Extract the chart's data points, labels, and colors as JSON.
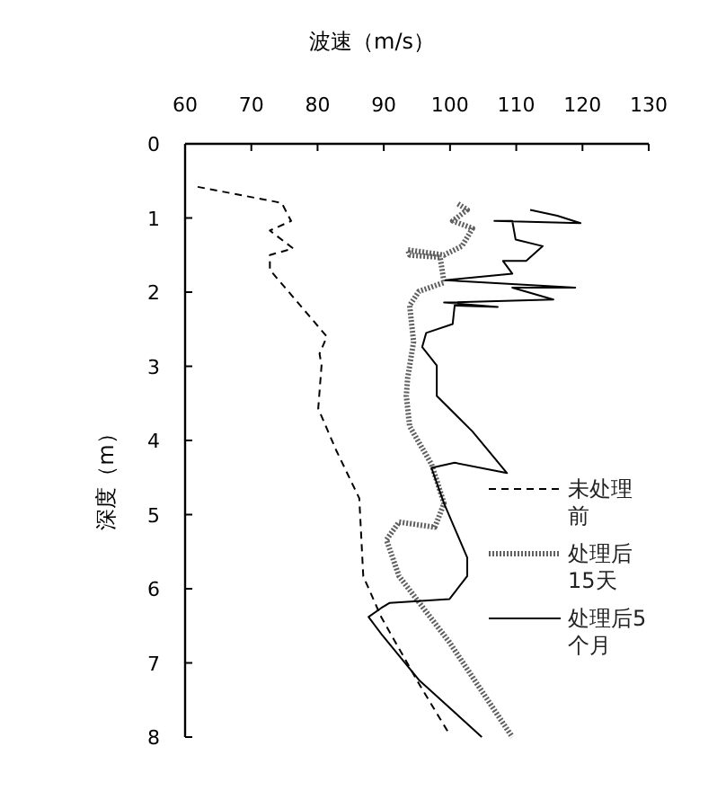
{
  "chart_data": {
    "type": "line",
    "xlabel": "波速（m/s）",
    "ylabel": "深度（m）",
    "xlim": [
      60,
      130
    ],
    "xticks": [
      60,
      70,
      80,
      90,
      100,
      110,
      120,
      130
    ],
    "ylim": [
      8,
      0
    ],
    "yticks": [
      0,
      1,
      2,
      3,
      4,
      5,
      6,
      7,
      8
    ],
    "legend": "right",
    "grid": false,
    "series": [
      {
        "name": "未处理前",
        "color": "#000000",
        "line_style": "dashed",
        "x": [
          61.9,
          73.6,
          74.6,
          76,
          72.8,
          76.3,
          72.8,
          72.8,
          77.4,
          81.4,
          80.3,
          80.6,
          80.1,
          82.8,
          86.3,
          86.9,
          89.6,
          95.3,
          99.9
        ],
        "values": [
          0.58,
          0.78,
          0.8,
          1.04,
          1.17,
          1.41,
          1.5,
          1.7,
          2.18,
          2.6,
          2.83,
          2.99,
          3.57,
          4.13,
          4.78,
          5.83,
          6.38,
          7.28,
          7.96
        ]
      },
      {
        "name": "处理后15天",
        "color": "#606060",
        "line_style": "dotted",
        "x": [
          101.2,
          102.6,
          100.4,
          103.4,
          101.8,
          99.1,
          93.6,
          93.9,
          98.5,
          99.1,
          95.3,
          93.9,
          94.5,
          93.6,
          93.4,
          93.9,
          97.2,
          99.1,
          97.7,
          92.3,
          90.4,
          92.3,
          99.9,
          109.4
        ],
        "values": [
          0.81,
          0.89,
          1.04,
          1.14,
          1.38,
          1.5,
          1.43,
          1.5,
          1.53,
          1.87,
          1.99,
          2.18,
          2.67,
          3.16,
          3.4,
          3.81,
          4.32,
          4.85,
          5.17,
          5.1,
          5.34,
          5.83,
          6.72,
          8.0
        ]
      },
      {
        "name": "处理后5个月",
        "color": "#000000",
        "line_style": "solid",
        "x": [
          112.1,
          116.2,
          119.7,
          106.7,
          109.4,
          109.9,
          114,
          111.5,
          108,
          109.4,
          99.3,
          118.9,
          109.4,
          115.6,
          99.1,
          107.2,
          100.7,
          100.4,
          96.4,
          95.8,
          98,
          98,
          103.4,
          108.6,
          100.7,
          97.2,
          99.1,
          102.6,
          102.6,
          99.9,
          90.9,
          89.6,
          87.7,
          89.8,
          95.3,
          104.8
        ],
        "values": [
          0.89,
          0.97,
          1.07,
          1.04,
          1.04,
          1.29,
          1.38,
          1.58,
          1.58,
          1.75,
          1.84,
          1.94,
          1.94,
          2.1,
          2.14,
          2.2,
          2.18,
          2.43,
          2.55,
          2.74,
          2.99,
          3.4,
          3.88,
          4.44,
          4.3,
          4.37,
          4.85,
          5.58,
          5.83,
          6.14,
          6.19,
          6.26,
          6.38,
          6.63,
          7.23,
          8.0
        ]
      }
    ]
  }
}
